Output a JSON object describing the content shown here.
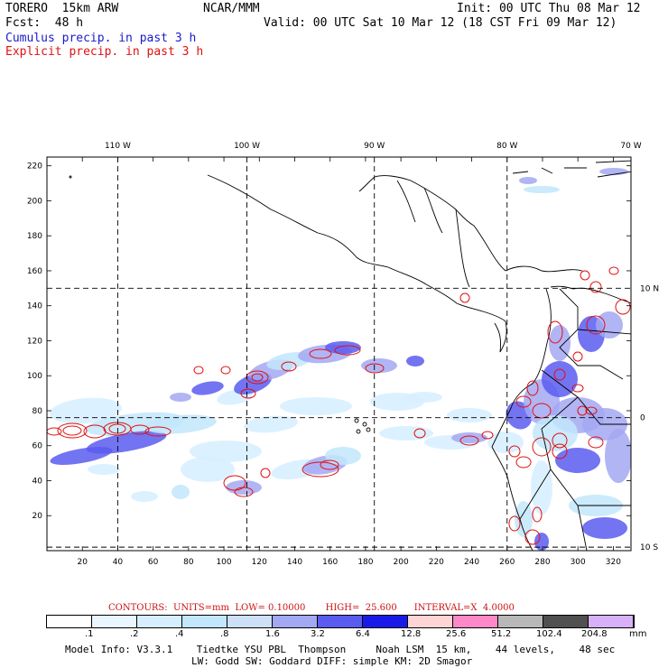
{
  "header": {
    "model": "TORERO  15km ARW",
    "org": "NCAR/MMM",
    "init": "Init: 00 UTC Thu 08 Mar 12",
    "fcst": "Fcst:  48 h",
    "valid": "Valid: 00 UTC Sat 10 Mar 12 (18 CST Fri 09 Mar 12)",
    "cumulus_label": "Cumulus precip. in past 3 h",
    "explicit_label": "Explicit precip. in past 3 h"
  },
  "colors": {
    "cumulus": "#1a1acc",
    "explicit": "#e01010",
    "grid": "#000000"
  },
  "chart_data": {
    "type": "heatmap",
    "title": "Cumulus precip. in past 3 h",
    "overlay": "Explicit precip. in past 3 h",
    "x_grid_ticks": [
      20,
      40,
      60,
      80,
      100,
      120,
      140,
      160,
      180,
      200,
      220,
      240,
      260,
      280,
      300,
      320
    ],
    "y_grid_ticks": [
      20,
      40,
      60,
      80,
      100,
      120,
      140,
      160,
      180,
      200,
      220
    ],
    "xlim": [
      0,
      330
    ],
    "ylim": [
      0,
      225
    ],
    "lon_labels": [
      "110 W",
      "100 W",
      "90 W",
      "80 W",
      "70 W"
    ],
    "lon_grid_x": [
      40,
      113,
      185,
      260,
      330
    ],
    "lat_labels": [
      "10 N",
      "0",
      "10 S"
    ],
    "lat_grid_y": [
      150,
      76,
      2
    ],
    "contours": {
      "text": "CONTOURS:  UNITS=mm  LOW= 0.10000       HIGH=  25.600      INTERVAL=X  4.0000",
      "units": "mm",
      "low": 0.1,
      "high": 25.6,
      "interval_factor": 4.0
    },
    "colorbar": {
      "levels": [
        ".1",
        ".2",
        ".4",
        ".8",
        "1.6",
        "3.2",
        "6.4",
        "12.8",
        "25.6",
        "51.2",
        "102.4",
        "204.8"
      ],
      "unit": "mm",
      "colors": [
        "#ffffff",
        "#eaf6ff",
        "#d6eeff",
        "#c2e6fb",
        "#cde0f7",
        "#a3a8f2",
        "#5a5cf0",
        "#1a1ae8",
        "#ffd4d4",
        "#ff88c8",
        "#b8b8b8",
        "#505050",
        "#d8b0f8"
      ]
    }
  },
  "footer": {
    "line1": "Model Info: V3.3.1    Tiedtke YSU PBL  Thompson     Noah LSM  15 km,    44 levels,    48 sec",
    "line2": "LW: Godd SW: Goddard DIFF: simple KM: 2D Smagor"
  }
}
